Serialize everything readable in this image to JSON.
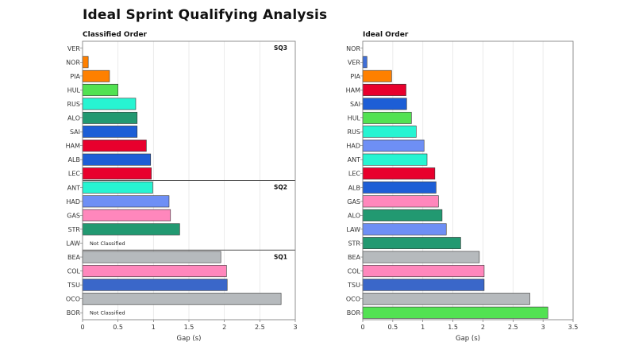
{
  "page": {
    "title": "Ideal Sprint Qualifying Analysis"
  },
  "chart_data": [
    {
      "type": "bar",
      "orientation": "horizontal",
      "title": "Classified Order",
      "xlabel": "Gap (s)",
      "xlim": [
        0,
        3
      ],
      "xticks": [
        0,
        0.5,
        1,
        1.5,
        2,
        2.5,
        3
      ],
      "grid": true,
      "categories": [
        "VER",
        "NOR",
        "PIA",
        "HUL",
        "RUS",
        "ALO",
        "SAI",
        "HAM",
        "ALB",
        "LEC",
        "ANT",
        "HAD",
        "GAS",
        "STR",
        "LAW",
        "BEA",
        "COL",
        "TSU",
        "OCO",
        "BOR"
      ],
      "values": [
        0,
        0.08,
        0.38,
        0.5,
        0.75,
        0.77,
        0.77,
        0.9,
        0.96,
        0.97,
        0.99,
        1.22,
        1.24,
        1.37,
        null,
        1.95,
        2.03,
        2.04,
        2.8,
        null
      ],
      "colors": [
        "#3f6fd8",
        "#ff8000",
        "#ff8000",
        "#52e252",
        "#27f4d2",
        "#229971",
        "#1d5ed6",
        "#e8002d",
        "#1d5ed6",
        "#e8002d",
        "#27f4d2",
        "#6e8ff5",
        "#ff87bc",
        "#229971",
        "#6e8ff5",
        "#b6babd",
        "#ff87bc",
        "#3a67c9",
        "#b6babd",
        "#52e252"
      ],
      "sessions": [
        {
          "label": "SQ3",
          "start": 0
        },
        {
          "label": "SQ2",
          "start": 10
        },
        {
          "label": "SQ1",
          "start": 15
        }
      ],
      "annotations": [
        {
          "category": "LAW",
          "text": "Not Classified"
        },
        {
          "category": "BOR",
          "text": "Not Classified"
        }
      ]
    },
    {
      "type": "bar",
      "orientation": "horizontal",
      "title": "Ideal Order",
      "xlabel": "Gap (s)",
      "xlim": [
        0,
        3.5
      ],
      "xticks": [
        0,
        0.5,
        1,
        1.5,
        2,
        2.5,
        3,
        3.5
      ],
      "grid": true,
      "categories": [
        "NOR",
        "VER",
        "PIA",
        "HAM",
        "SAI",
        "HUL",
        "RUS",
        "HAD",
        "ANT",
        "LEC",
        "ALB",
        "GAS",
        "ALO",
        "LAW",
        "STR",
        "BEA",
        "COL",
        "TSU",
        "OCO",
        "BOR"
      ],
      "values": [
        0,
        0.07,
        0.48,
        0.72,
        0.73,
        0.81,
        0.89,
        1.02,
        1.07,
        1.2,
        1.22,
        1.26,
        1.32,
        1.39,
        1.63,
        1.94,
        2.02,
        2.02,
        2.78,
        3.08
      ],
      "colors": [
        "#ff8000",
        "#3f6fd8",
        "#ff8000",
        "#e8002d",
        "#1d5ed6",
        "#52e252",
        "#27f4d2",
        "#6e8ff5",
        "#27f4d2",
        "#e8002d",
        "#1d5ed6",
        "#ff87bc",
        "#229971",
        "#6e8ff5",
        "#229971",
        "#b6babd",
        "#ff87bc",
        "#3a67c9",
        "#b6babd",
        "#52e252"
      ]
    }
  ]
}
